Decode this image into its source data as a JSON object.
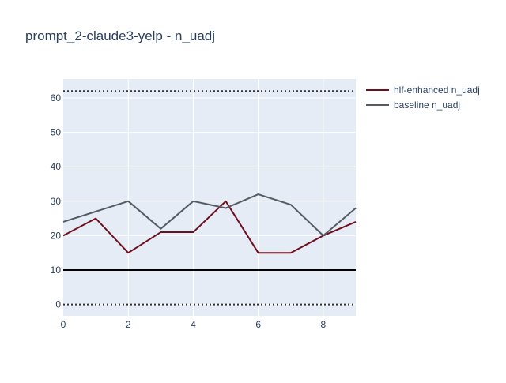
{
  "chart_data": {
    "type": "line",
    "title": "prompt_2-claude3-yelp - n_uadj",
    "xlabel": "",
    "ylabel": "",
    "x": [
      0,
      1,
      2,
      3,
      4,
      5,
      6,
      7,
      8,
      9
    ],
    "xlim": [
      0,
      9
    ],
    "ylim": [
      -3.3,
      65.5
    ],
    "x_ticks": [
      "0",
      "2",
      "4",
      "6",
      "8"
    ],
    "y_ticks": [
      "0",
      "10",
      "20",
      "30",
      "40",
      "50",
      "60"
    ],
    "grid": true,
    "legend_position": "top-right",
    "plot_background": "#e5ecf6",
    "series": [
      {
        "name": "hlf-enhanced n_uadj",
        "color": "#6e0f1e",
        "values": [
          20,
          25,
          15,
          21,
          21,
          30,
          15,
          15,
          20,
          24
        ]
      },
      {
        "name": "baseline n_uadj",
        "color": "#555b63",
        "values": [
          24,
          27,
          30,
          22,
          30,
          28,
          32,
          29,
          20,
          28
        ]
      }
    ],
    "reference_lines": [
      {
        "y": 62,
        "style": "dotted",
        "color": "#333333"
      },
      {
        "y": 10,
        "style": "solid",
        "color": "#000000"
      },
      {
        "y": 0,
        "style": "dotted",
        "color": "#333333"
      }
    ]
  }
}
